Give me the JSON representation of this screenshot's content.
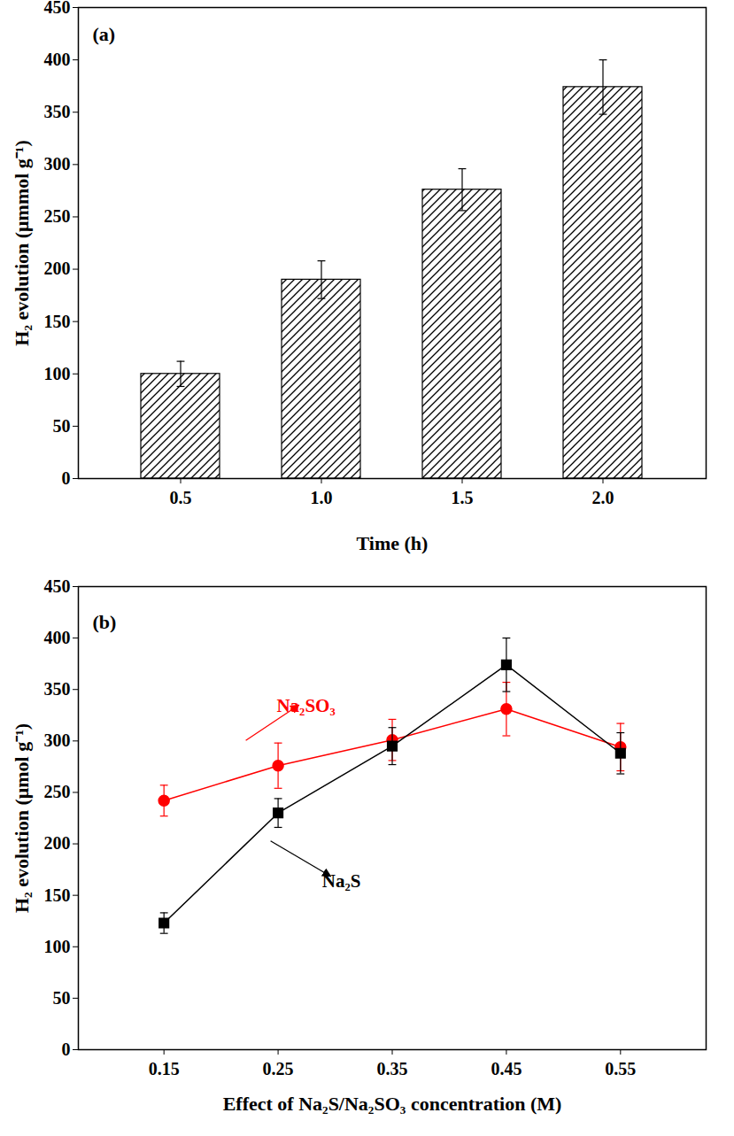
{
  "chart_data": [
    {
      "type": "bar",
      "annotation": "(a)",
      "x_label": "Time (h)",
      "y_label": "H₂ evolution (μmmol g⁻¹)",
      "categories": [
        "0.5",
        "1.0",
        "1.5",
        "2.0"
      ],
      "values": [
        100,
        190,
        276,
        374
      ],
      "errors": [
        12,
        18,
        20,
        26
      ],
      "color": "#000000",
      "ylim": [
        0,
        450
      ],
      "yticks": [
        0,
        50,
        100,
        150,
        200,
        250,
        300,
        350,
        400,
        450
      ],
      "grid": false
    },
    {
      "type": "line",
      "annotation": "(b)",
      "x_label": "Effect of Na₂S/Na₂SO₃ concentration (M)",
      "y_label": "H₂ evolution (μmol g⁻¹)",
      "x": [
        0.15,
        0.25,
        0.35,
        0.45,
        0.55
      ],
      "xlim": [
        0.075,
        0.625
      ],
      "xticks": [
        0.15,
        0.25,
        0.35,
        0.45,
        0.55
      ],
      "ylim": [
        0,
        450
      ],
      "yticks": [
        0,
        50,
        100,
        150,
        200,
        250,
        300,
        350,
        400,
        450
      ],
      "grid": false,
      "series": [
        {
          "name": "Na₂SO₃",
          "color": "#ff0000",
          "marker": "circle",
          "line_style": "solid",
          "values": [
            242,
            276,
            301,
            331,
            294
          ],
          "errors": [
            15,
            22,
            20,
            26,
            23
          ]
        },
        {
          "name": "Na₂S",
          "color": "#000000",
          "marker": "square",
          "line_style": "solid",
          "values": [
            123,
            230,
            295,
            374,
            288
          ],
          "errors": [
            10,
            14,
            18,
            26,
            20
          ]
        }
      ]
    }
  ]
}
